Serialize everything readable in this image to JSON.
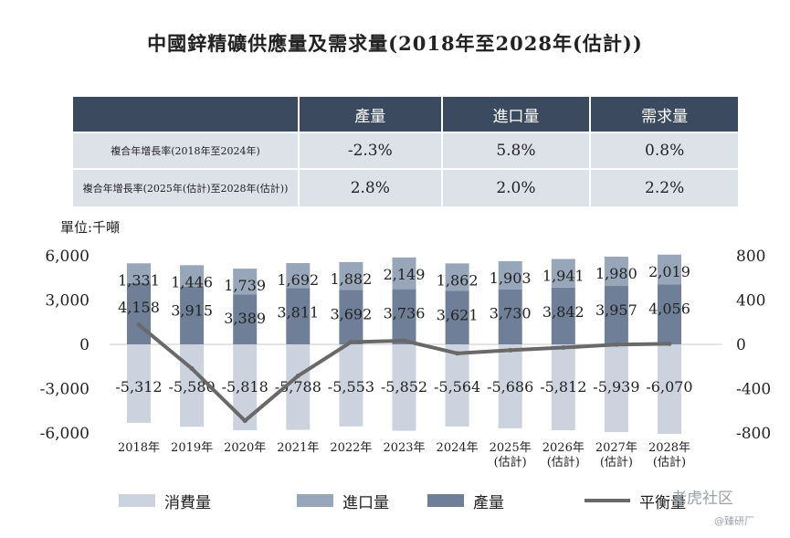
{
  "title": "中國鋅精礦供應量及需求量(2018年至2028年(估計))",
  "cagr_table": {
    "headers": [
      "",
      "產量",
      "進口量",
      "需求量"
    ],
    "rows": [
      {
        "label": "複合年增長率(2018年至2024年)",
        "values": [
          "-2.3%",
          "5.8%",
          "0.8%"
        ]
      },
      {
        "label": "複合年增長率(2025年(估計)至2028年(估計))",
        "values": [
          "2.8%",
          "2.0%",
          "2.2%"
        ]
      }
    ]
  },
  "unit_label": "單位:千噸",
  "colors": {
    "production": "#6e7f97",
    "import": "#98a6ba",
    "consumption": "#ccd2de",
    "balance": "#696969",
    "header": "#3b4a5f",
    "row": "#dde1e8"
  },
  "chart_data": {
    "type": "bar",
    "categories": [
      "2018年",
      "2019年",
      "2020年",
      "2021年",
      "2022年",
      "2023年",
      "2024年",
      "2025年\n(估計)",
      "2026年\n(估計)",
      "2027年\n(估計)",
      "2028年\n(估計)"
    ],
    "series": [
      {
        "name": "產量",
        "values": [
          4158,
          3915,
          3389,
          3811,
          3692,
          3736,
          3621,
          3730,
          3842,
          3957,
          4056
        ]
      },
      {
        "name": "進口量",
        "values": [
          1331,
          1446,
          1739,
          1692,
          1882,
          2149,
          1862,
          1903,
          1941,
          1980,
          2019
        ]
      },
      {
        "name": "消費量",
        "values": [
          -5312,
          -5580,
          -5818,
          -5788,
          -5553,
          -5852,
          -5564,
          -5686,
          -5812,
          -5939,
          -6070
        ]
      },
      {
        "name": "平衡量",
        "axis": "right",
        "values": [
          177,
          -219,
          -690,
          -285,
          21,
          33,
          -81,
          -53,
          -29,
          -2,
          5
        ]
      }
    ],
    "y_left": {
      "ticks": [
        "6,000",
        "3,000",
        "0",
        "-3,000",
        "-6,000"
      ],
      "range": [
        -6000,
        6000
      ]
    },
    "y_right": {
      "ticks": [
        "800",
        "400",
        "0",
        "-400",
        "-800"
      ],
      "range": [
        -800,
        800
      ]
    },
    "legend": [
      "消費量",
      "進口量",
      "產量",
      "平衡量"
    ],
    "legend_position": "bottom"
  },
  "watermarks": [
    "老虎社区",
    "@臻研厂"
  ]
}
